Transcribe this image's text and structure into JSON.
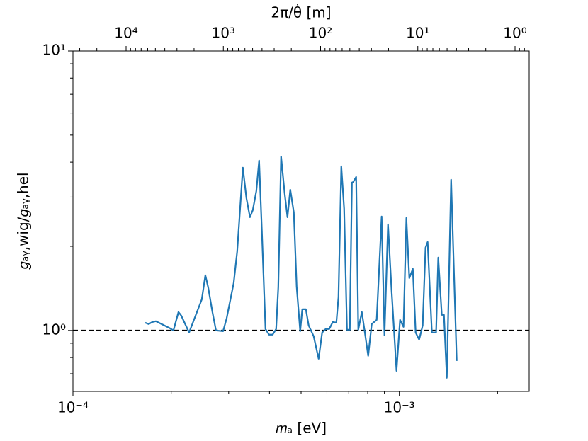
{
  "chart_data": {
    "type": "line",
    "xlabel": "𝑚ₐ [eV]",
    "ylabel": "𝑔ₐᵧ,wig/𝑔ₐᵧ,hel",
    "x2label": "2π/θ̇ [m]",
    "xscale": "log",
    "yscale": "log",
    "x2scale": "log",
    "xlim": [
      0.0001,
      0.0025
    ],
    "ylim": [
      0.605,
      10
    ],
    "x2lim": [
      35200,
      0.715
    ],
    "xticks": [
      {
        "value": 0.0001,
        "label": "10⁻⁴"
      },
      {
        "value": 0.001,
        "label": "10⁻³"
      }
    ],
    "xminorticks": [
      0.0002,
      0.0003,
      0.0004,
      0.0005,
      0.0006,
      0.0007,
      0.0008,
      0.0009,
      0.002
    ],
    "yticks": [
      {
        "value": 1,
        "label": "10⁰"
      },
      {
        "value": 10,
        "label": "10¹"
      }
    ],
    "yminorticks": [
      0.7,
      0.8,
      0.9,
      2,
      3,
      4,
      5,
      6,
      7,
      8,
      9
    ],
    "x2ticks": [
      {
        "value": 10000,
        "label": "10⁴"
      },
      {
        "value": 1000,
        "label": "10³"
      },
      {
        "value": 100,
        "label": "10²"
      },
      {
        "value": 10,
        "label": "10¹"
      },
      {
        "value": 1,
        "label": "10⁰"
      }
    ],
    "x2minorticks": [
      0.8,
      0.9,
      2,
      3,
      4,
      5,
      6,
      7,
      8,
      9,
      20,
      30,
      40,
      50,
      60,
      70,
      80,
      90,
      200,
      300,
      400,
      500,
      600,
      700,
      800,
      900,
      2000,
      3000,
      4000,
      5000,
      6000,
      7000,
      8000,
      9000,
      20000,
      30000
    ],
    "hline": {
      "y": 1,
      "color": "#000000",
      "style": "dashed"
    },
    "series": [
      {
        "color": "#1f77b4",
        "x": [
          0.0001665,
          0.0001707,
          0.000175,
          0.0001794,
          0.0001886,
          0.0001983,
          0.0002032,
          0.0002105,
          0.0002147,
          0.0002269,
          0.0002482,
          0.0002545,
          0.0002596,
          0.0002675,
          0.0002743,
          0.0002884,
          0.0002957,
          0.0003108,
          0.0003186,
          0.0003316,
          0.00034,
          0.0003486,
          0.0003556,
          0.0003646,
          0.0003719,
          0.0003794,
          0.000389,
          0.0003989,
          0.000409,
          0.0004193,
          0.0004257,
          0.0004342,
          0.0004452,
          0.0004542,
          0.0004633,
          0.000475,
          0.0004846,
          0.0004968,
          0.0005043,
          0.0005171,
          0.0005275,
          0.0005463,
          0.0005658,
          0.0005801,
          0.0005948,
          0.0006099,
          0.0006253,
          0.0006412,
          0.0006509,
          0.000664,
          0.0006774,
          0.0006911,
          0.0007051,
          0.0007157,
          0.0007228,
          0.0007374,
          0.0007485,
          0.0007674,
          0.000783,
          0.0008027,
          0.000823,
          0.0008523,
          0.0008827,
          0.0009005,
          0.0009233,
          0.0009466,
          0.0009802,
          0.001005,
          0.00103,
          0.001051,
          0.001073,
          0.0011,
          0.001122,
          0.00115,
          0.001179,
          0.001203,
          0.001221,
          0.001258,
          0.001296,
          0.001316,
          0.001349,
          0.00137,
          0.001398,
          0.001441,
          0.001499
        ],
        "values": [
          1.066,
          1.054,
          1.072,
          1.079,
          1.048,
          1.018,
          1.0,
          1.164,
          1.13,
          0.983,
          1.292,
          1.576,
          1.427,
          1.164,
          1.0,
          0.994,
          1.104,
          1.478,
          1.92,
          3.823,
          2.974,
          2.542,
          2.694,
          3.153,
          4.052,
          2.223,
          1.012,
          0.966,
          0.966,
          1.012,
          1.427,
          4.196,
          3.098,
          2.542,
          3.19,
          2.647,
          1.436,
          0.994,
          1.191,
          1.191,
          1.042,
          0.954,
          0.792,
          0.983,
          1.012,
          1.012,
          1.072,
          1.066,
          1.315,
          3.868,
          2.726,
          1.006,
          1.006,
          3.382,
          3.401,
          3.543,
          1.006,
          1.164,
          0.994,
          0.811,
          1.054,
          1.091,
          2.557,
          0.96,
          2.398,
          1.394,
          0.717,
          1.091,
          1.03,
          2.527,
          1.539,
          1.661,
          0.983,
          0.927,
          1.042,
          1.978,
          2.072,
          0.983,
          0.983,
          1.823,
          1.137,
          1.137,
          0.677,
          3.462,
          0.778
        ]
      }
    ]
  }
}
